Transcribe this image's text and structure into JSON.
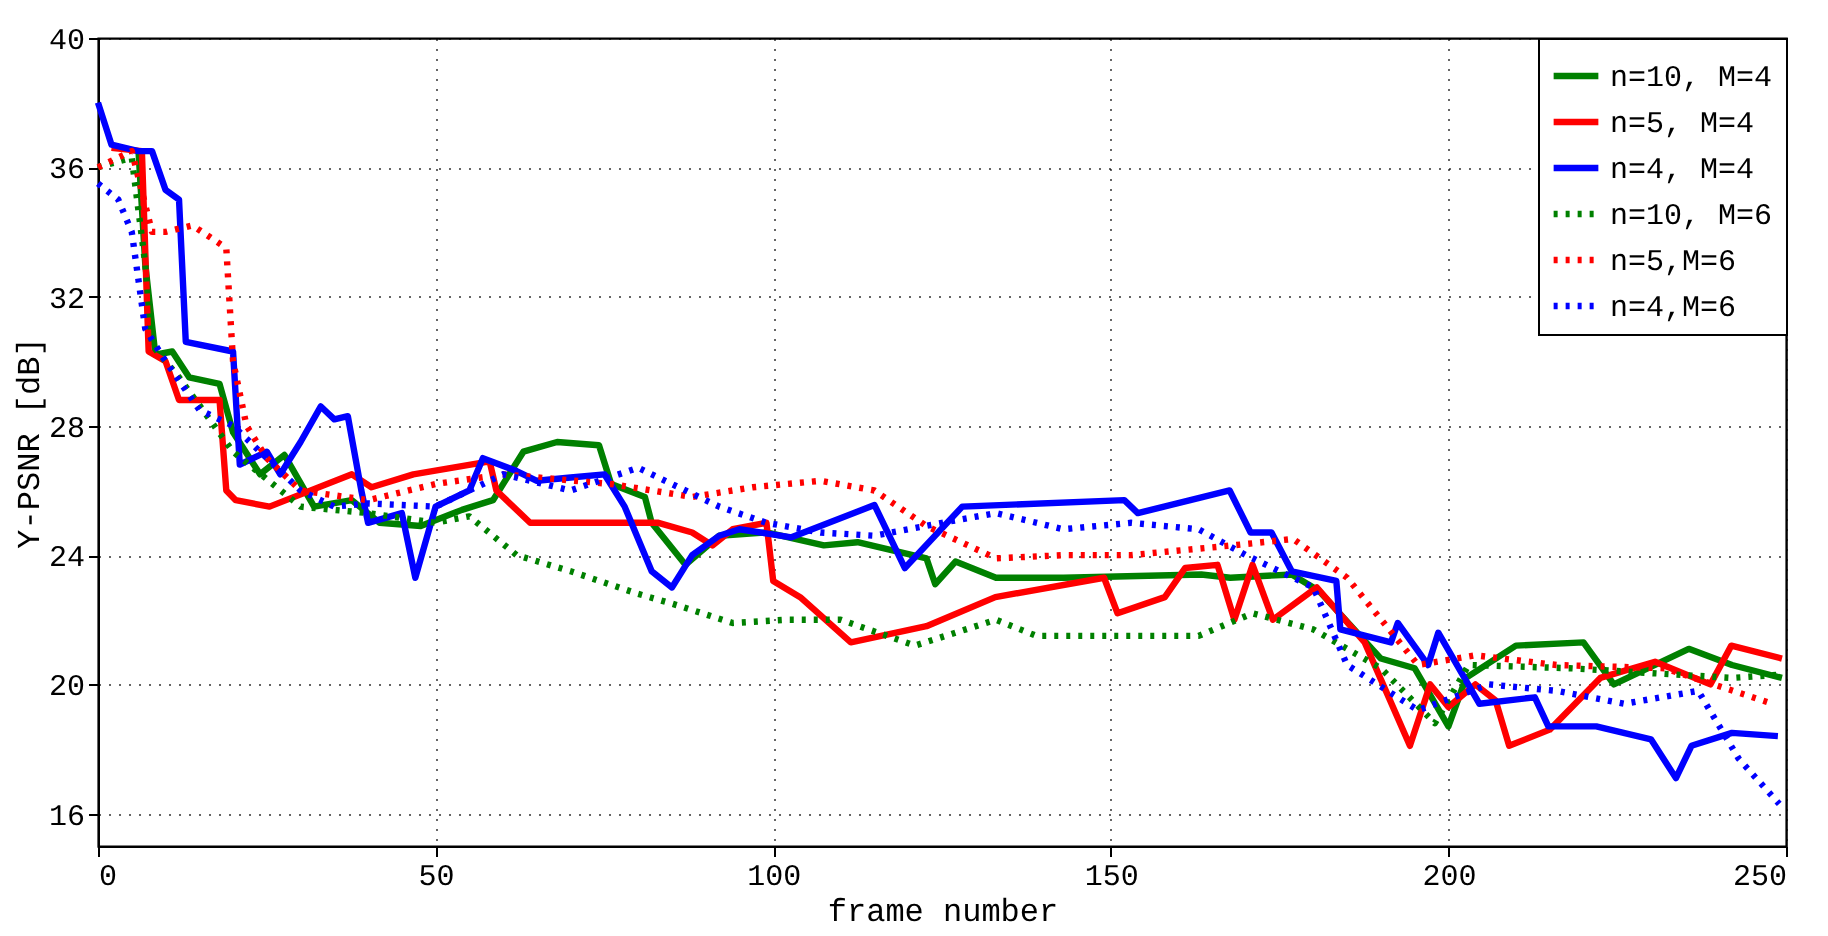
{
  "chart_data": {
    "type": "line",
    "xlabel": "frame number",
    "ylabel": "Y-PSNR [dB]",
    "xlim": [
      0,
      250
    ],
    "ylim": [
      15,
      40
    ],
    "xticks": [
      0,
      50,
      100,
      150,
      200,
      250
    ],
    "yticks": [
      16,
      20,
      24,
      28,
      32,
      36,
      40
    ],
    "grid": true,
    "legend": "top right",
    "marker": "none",
    "series": [
      {
        "name": "n=10, M=4",
        "color": "#008000",
        "line_style": "solid",
        "x": [
          6,
          7,
          8.5,
          11,
          13.5,
          18,
          20,
          24,
          27.6,
          32,
          37.6,
          41.7,
          47.8,
          53.9,
          58.5,
          63,
          68,
          74.2,
          76,
          81,
          82,
          87,
          92,
          99,
          107.5,
          112.5,
          122.7,
          124,
          127,
          133,
          143,
          163.4,
          167.7,
          176.8,
          180.8,
          190,
          195,
          200,
          202.6,
          210,
          220,
          224.5,
          235.6,
          242,
          249.4
        ],
        "values": [
          36.5,
          33,
          30.2,
          30.3,
          29.5,
          29.3,
          27.8,
          26.5,
          27.1,
          25.5,
          25.7,
          25,
          24.9,
          25.4,
          25.7,
          27.2,
          27.5,
          27.4,
          26.2,
          25.8,
          25,
          23.7,
          24.6,
          24.7,
          24.3,
          24.4,
          23.9,
          23.1,
          23.8,
          23.3,
          23.3,
          23.4,
          23.3,
          23.4,
          22.9,
          20.8,
          20.5,
          18.7,
          20.2,
          21.2,
          21.3,
          20,
          21.1,
          20.6,
          20.2
        ]
      },
      {
        "name": "n=5, M=4",
        "color": "#ff0000",
        "line_style": "solid",
        "x": [
          2,
          6.5,
          7.5,
          10,
          12,
          18,
          19,
          20.4,
          25.4,
          37.6,
          40.5,
          46.7,
          58,
          59,
          64,
          73,
          83,
          88,
          91,
          94,
          99,
          100,
          104,
          111.5,
          122.7,
          132.9,
          149,
          151,
          158,
          161,
          165.8,
          168.3,
          171,
          174,
          180.5,
          187.6,
          194.3,
          197.3,
          200,
          204,
          207,
          209,
          215,
          222.5,
          230.6,
          238.8,
          241.9,
          249.4
        ],
        "values": [
          36.6,
          36.5,
          30.3,
          30,
          28.8,
          28.8,
          26,
          25.7,
          25.5,
          26.5,
          26.1,
          26.5,
          26.9,
          26,
          25,
          25,
          25,
          24.7,
          24.3,
          24.8,
          25,
          23.2,
          22.7,
          21.3,
          21.8,
          22.7,
          23.3,
          22.2,
          22.7,
          23.6,
          23.7,
          22,
          23.7,
          22,
          23,
          21.3,
          18.1,
          20,
          19.3,
          20,
          19.5,
          18.1,
          18.6,
          20.2,
          20.7,
          20,
          21.2,
          20.8
        ]
      },
      {
        "name": "n=4, M=4",
        "color": "#0000ff",
        "line_style": "solid",
        "x": [
          0,
          2,
          6,
          8,
          10,
          12,
          13,
          20,
          21,
          25,
          27,
          30,
          33,
          35,
          37,
          39,
          40,
          45,
          47,
          50,
          55,
          57,
          62,
          65,
          70,
          75,
          78,
          82,
          85,
          88,
          92,
          95,
          102.7,
          115,
          119.5,
          128,
          152,
          154,
          167.6,
          170.7,
          173.8,
          176.8,
          183.4,
          184,
          191.5,
          192.5,
          197,
          198.5,
          204.6,
          212.8,
          214.8,
          221.9,
          230,
          233.7,
          236,
          242,
          248.8
        ],
        "values": [
          38,
          36.7,
          36.5,
          36.5,
          35.3,
          35,
          30.6,
          30.3,
          26.8,
          27.2,
          26.5,
          27.5,
          28.6,
          28.2,
          28.3,
          26,
          25,
          25.3,
          23.3,
          25.5,
          26,
          27,
          26.6,
          26.3,
          26.4,
          26.5,
          25.5,
          23.5,
          23,
          24,
          24.6,
          24.8,
          24.55,
          25.55,
          23.6,
          25.5,
          25.7,
          25.3,
          26,
          24.7,
          24.7,
          23.5,
          23.2,
          21.7,
          21.3,
          21.9,
          20.6,
          21.6,
          19.4,
          19.6,
          18.7,
          18.7,
          18.3,
          17.1,
          18.1,
          18.5,
          18.4
        ]
      },
      {
        "name": "n=10, M=6",
        "color": "#008000",
        "line_style": "dotted",
        "x": [
          0,
          5,
          7,
          8,
          12,
          20,
          30,
          40,
          50,
          55,
          62,
          70,
          80,
          85,
          94,
          102,
          110,
          121,
          133,
          139,
          148,
          163,
          171,
          180,
          190,
          198,
          203,
          218,
          242,
          249
        ],
        "values": [
          36,
          36.3,
          33,
          30.5,
          29.5,
          27.2,
          25.5,
          25.3,
          25,
          25.2,
          24,
          23.5,
          22.8,
          22.5,
          21.9,
          22,
          22,
          21.2,
          22,
          21.5,
          21.5,
          21.5,
          22.2,
          21.7,
          20.5,
          18.8,
          20.6,
          20.5,
          20.2,
          20.3
        ]
      },
      {
        "name": "n=5,M=6",
        "color": "#ff0000",
        "line_style": "dotted",
        "x": [
          0,
          5,
          8,
          10,
          14,
          19,
          20,
          22,
          25,
          30,
          40,
          50,
          60,
          76,
          88,
          97,
          107,
          115,
          122.7,
          133,
          143,
          153,
          168,
          177,
          185,
          195.5,
          204,
          216,
          232,
          248
        ],
        "values": [
          36,
          36.5,
          34,
          34,
          34.2,
          33.5,
          30,
          28,
          27,
          26,
          25.7,
          26.2,
          26.5,
          26.2,
          25.8,
          26.1,
          26.3,
          26,
          24.9,
          23.9,
          24,
          24,
          24.3,
          24.5,
          23.3,
          20.6,
          20.9,
          20.6,
          20.5,
          19.4
        ]
      },
      {
        "name": "n=4,M=6",
        "color": "#0000ff",
        "line_style": "dotted",
        "x": [
          0,
          3,
          5,
          7,
          10,
          15,
          20,
          25,
          30,
          35,
          40,
          50,
          55,
          60,
          70,
          80,
          92,
          99,
          107,
          115,
          125,
          133,
          143,
          153,
          163,
          170,
          180,
          185,
          195.5,
          206,
          216,
          226,
          237,
          243,
          249
        ],
        "values": [
          35.5,
          35,
          34,
          31,
          30,
          28.5,
          28,
          27,
          26,
          25.5,
          25.6,
          25.5,
          26,
          26.5,
          26,
          26.7,
          25.5,
          25,
          24.7,
          24.6,
          25,
          25.3,
          24.8,
          25,
          24.8,
          24,
          23,
          20.6,
          19.2,
          20,
          19.8,
          19.4,
          19.8,
          17.7,
          16.3
        ]
      }
    ]
  }
}
